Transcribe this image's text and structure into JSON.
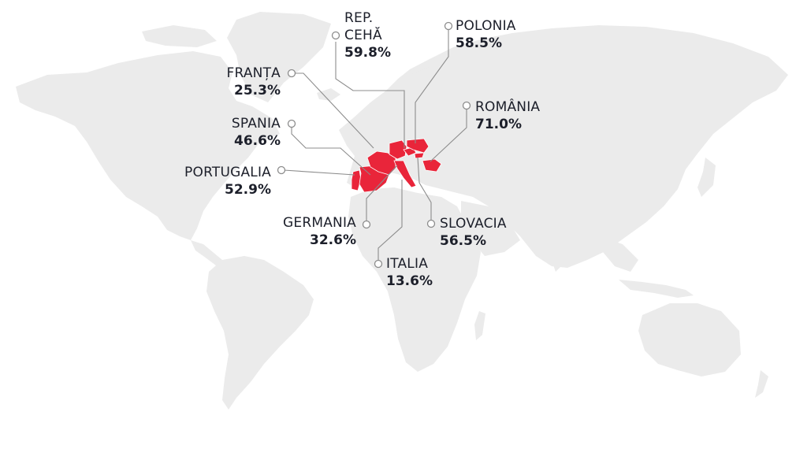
{
  "map": {
    "highlight_color": "#e9253a",
    "land_color": "#ebebeb",
    "countries": [
      {
        "id": "rep-ceha",
        "name": "REP.",
        "name2": "CEHĂ",
        "value": "59.8%"
      },
      {
        "id": "polonia",
        "name": "POLONIA",
        "value": "58.5%"
      },
      {
        "id": "franta",
        "name": "FRANȚA",
        "value": "25.3%"
      },
      {
        "id": "romania",
        "name": "ROMÂNIA",
        "value": "71.0%"
      },
      {
        "id": "spania",
        "name": "SPANIA",
        "value": "46.6%"
      },
      {
        "id": "portugalia",
        "name": "PORTUGALIA",
        "value": "52.9%"
      },
      {
        "id": "germania",
        "name": "GERMANIA",
        "value": "32.6%"
      },
      {
        "id": "slovacia",
        "name": "SLOVACIA",
        "value": "56.5%"
      },
      {
        "id": "italia",
        "name": "ITALIA",
        "value": "13.6%"
      }
    ]
  }
}
